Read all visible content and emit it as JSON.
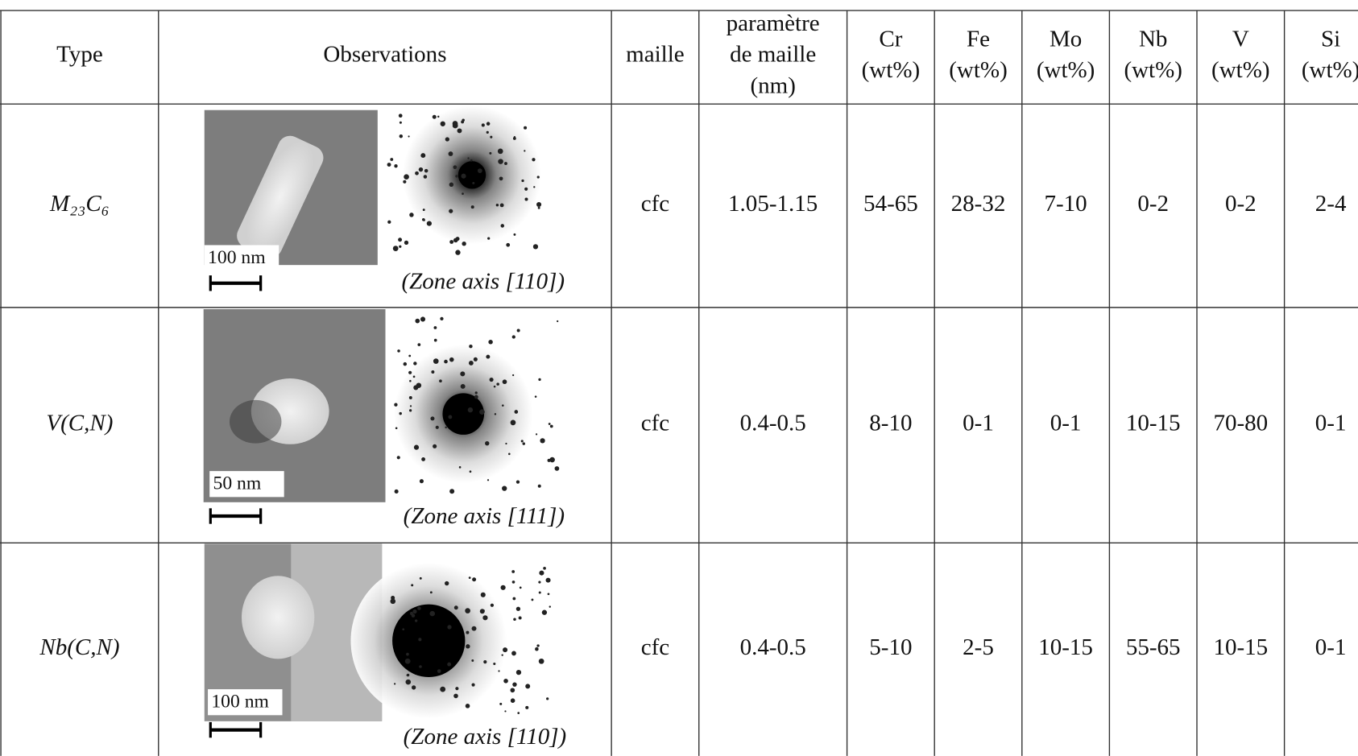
{
  "table": {
    "header": [
      [
        "Type"
      ],
      [
        "Observations"
      ],
      [
        "maille"
      ],
      [
        "paramètre",
        "de maille",
        "(nm)"
      ],
      [
        "Cr",
        "(wt%)"
      ],
      [
        "Fe",
        "(wt%)"
      ],
      [
        "Mo",
        "(wt%)"
      ],
      [
        "Nb",
        "(wt%)"
      ],
      [
        "V",
        "(wt%)"
      ],
      [
        "Si",
        "(wt%)"
      ]
    ],
    "rows": [
      {
        "type": "M₂₃C₆",
        "scale": "100 nm",
        "zone_axis": "(Zone axis [110])",
        "cells": [
          "cfc",
          "1.05-1.15",
          "54-65",
          "28-32",
          "7-10",
          "0-2",
          "0-2",
          "2-4"
        ]
      },
      {
        "type": "V(C,N)",
        "scale": "50 nm",
        "zone_axis": "(Zone axis [111])",
        "cells": [
          "cfc",
          "0.4-0.5",
          "8-10",
          "0-1",
          "0-1",
          "10-15",
          "70-80",
          "0-1"
        ]
      },
      {
        "type": "Nb(C,N)",
        "scale": "100 nm",
        "zone_axis": "(Zone axis [110])",
        "cells": [
          "cfc",
          "0.4-0.5",
          "5-10",
          "2-5",
          "10-15",
          "55-65",
          "10-15",
          "0-1"
        ]
      }
    ]
  }
}
